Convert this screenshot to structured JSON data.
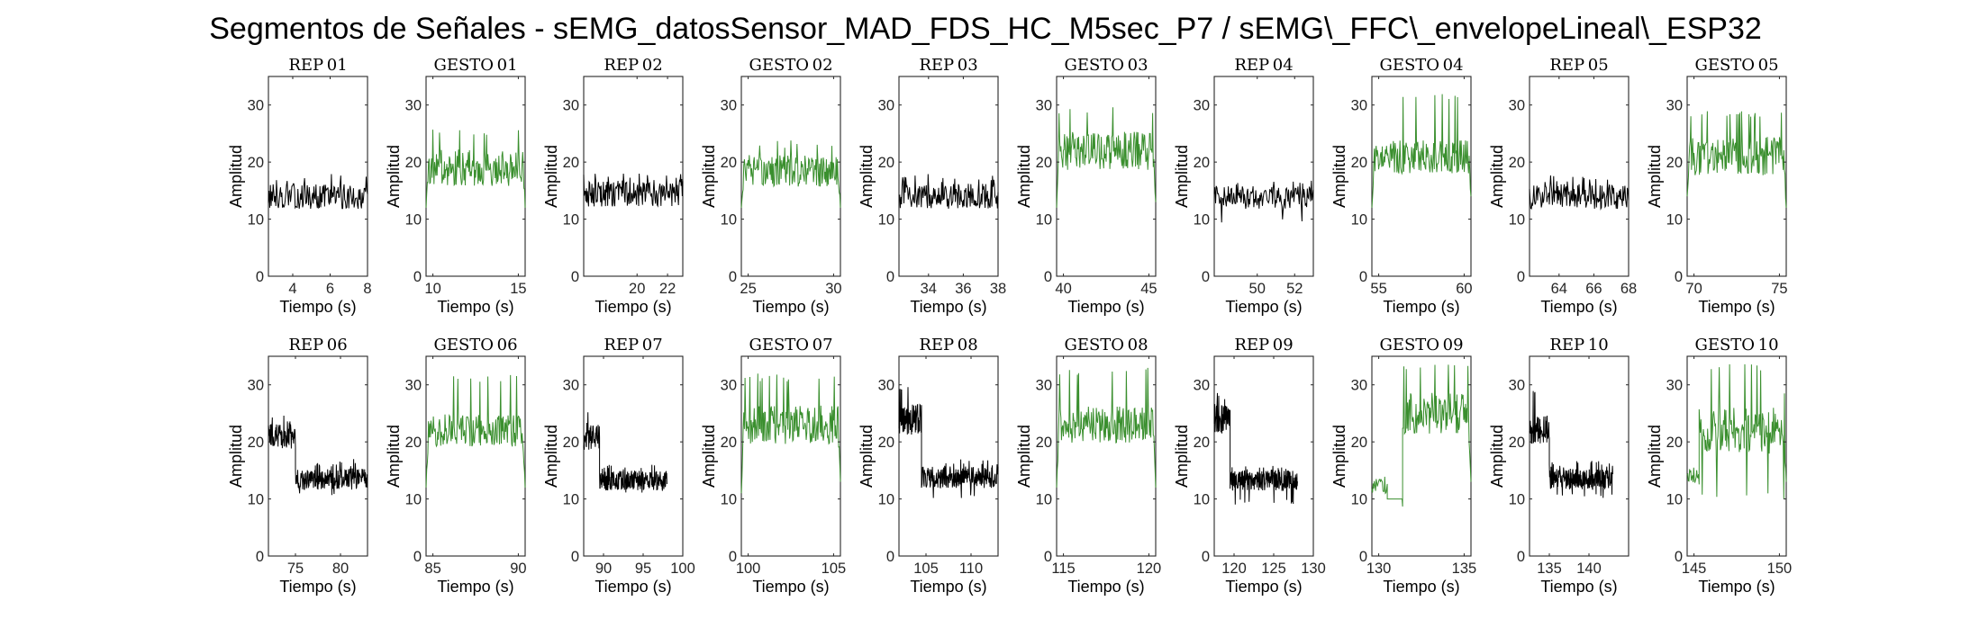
{
  "figure": {
    "title": "Segmentos de Señales - sEMG_datosSensor_MAD_FDS_HC_M5sec_P7 / sEMG\\_FFC\\_envelopeLineal\\_ESP32"
  },
  "colors": {
    "rep": "#000000",
    "gesto": "#3a8f2e",
    "axis": "#262626"
  },
  "chart_data": [
    {
      "type": "line",
      "title": "REP_01",
      "xlabel": "Tiempo (s)",
      "ylabel": "Amplitud",
      "xlim": [
        2.7,
        8.0
      ],
      "ylim": [
        0,
        35
      ],
      "xticks": [
        4,
        6,
        8
      ],
      "yticks": [
        0,
        10,
        20,
        30
      ],
      "series": [
        {
          "kind": "rep",
          "segments": [
            {
              "x0": 2.7,
              "x1": 8.0,
              "base": 14,
              "amp": 2.2,
              "spike": 18
            }
          ]
        }
      ]
    },
    {
      "type": "line",
      "title": "GESTO_01",
      "xlabel": "Tiempo (s)",
      "ylabel": "Amplitud",
      "xlim": [
        9.6,
        15.4
      ],
      "ylim": [
        0,
        35
      ],
      "xticks": [
        10,
        15
      ],
      "yticks": [
        0,
        10,
        20,
        30
      ],
      "series": [
        {
          "kind": "gesto",
          "segments": [
            {
              "x0": 9.6,
              "x1": 15.4,
              "base": 19,
              "amp": 3.2,
              "spike": 26,
              "rampIn": 12,
              "rampOut": 12
            }
          ]
        }
      ]
    },
    {
      "type": "line",
      "title": "REP_02",
      "xlabel": "Tiempo (s)",
      "ylabel": "Amplitud",
      "xlim": [
        16.5,
        23.0
      ],
      "ylim": [
        0,
        35
      ],
      "xticks": [
        20,
        22
      ],
      "yticks": [
        0,
        10,
        20,
        30
      ],
      "series": [
        {
          "kind": "rep",
          "segments": [
            {
              "x0": 16.5,
              "x1": 23.0,
              "base": 14.5,
              "amp": 2.3,
              "spike": 18
            }
          ]
        }
      ]
    },
    {
      "type": "line",
      "title": "GESTO_02",
      "xlabel": "Tiempo (s)",
      "ylabel": "Amplitud",
      "xlim": [
        24.6,
        30.4
      ],
      "ylim": [
        0,
        35
      ],
      "xticks": [
        25,
        30
      ],
      "yticks": [
        0,
        10,
        20,
        30
      ],
      "series": [
        {
          "kind": "gesto",
          "segments": [
            {
              "x0": 24.6,
              "x1": 30.4,
              "base": 18.5,
              "amp": 2.8,
              "spike": 24,
              "rampIn": 12,
              "rampOut": 12
            }
          ]
        }
      ]
    },
    {
      "type": "line",
      "title": "REP_03",
      "xlabel": "Tiempo (s)",
      "ylabel": "Amplitud",
      "xlim": [
        32.3,
        38.0
      ],
      "ylim": [
        0,
        35
      ],
      "xticks": [
        34,
        36,
        38
      ],
      "yticks": [
        0,
        10,
        20,
        30
      ],
      "series": [
        {
          "kind": "rep",
          "segments": [
            {
              "x0": 32.3,
              "x1": 38.0,
              "base": 14,
              "amp": 2.2,
              "spike": 18
            }
          ]
        }
      ]
    },
    {
      "type": "line",
      "title": "GESTO_03",
      "xlabel": "Tiempo (s)",
      "ylabel": "Amplitud",
      "xlim": [
        39.6,
        45.4
      ],
      "ylim": [
        0,
        35
      ],
      "xticks": [
        40,
        45
      ],
      "yticks": [
        0,
        10,
        20,
        30
      ],
      "series": [
        {
          "kind": "gesto",
          "segments": [
            {
              "x0": 39.6,
              "x1": 45.4,
              "base": 22,
              "amp": 3.4,
              "spike": 30,
              "rampIn": 12,
              "rampOut": 13
            }
          ]
        }
      ]
    },
    {
      "type": "line",
      "title": "REP_04",
      "xlabel": "Tiempo (s)",
      "ylabel": "Amplitud",
      "xlim": [
        47.7,
        53.0
      ],
      "ylim": [
        0,
        35
      ],
      "xticks": [
        50,
        52
      ],
      "yticks": [
        0,
        10,
        20,
        30
      ],
      "series": [
        {
          "kind": "rep",
          "segments": [
            {
              "x0": 47.7,
              "x1": 53.0,
              "base": 13.8,
              "amp": 2.0,
              "spike": 17,
              "dip": 9
            }
          ]
        }
      ]
    },
    {
      "type": "line",
      "title": "GESTO_04",
      "xlabel": "Tiempo (s)",
      "ylabel": "Amplitud",
      "xlim": [
        54.6,
        60.4
      ],
      "ylim": [
        0,
        35
      ],
      "xticks": [
        55,
        60
      ],
      "yticks": [
        0,
        10,
        20,
        30
      ],
      "series": [
        {
          "kind": "gesto",
          "segments": [
            {
              "x0": 54.6,
              "x1": 60.4,
              "base": 21,
              "amp": 3.0,
              "spike": 32,
              "rampIn": 12,
              "rampOut": 14
            }
          ]
        }
      ]
    },
    {
      "type": "line",
      "title": "REP_05",
      "xlabel": "Tiempo (s)",
      "ylabel": "Amplitud",
      "xlim": [
        62.3,
        68.0
      ],
      "ylim": [
        0,
        35
      ],
      "xticks": [
        64,
        66,
        68
      ],
      "yticks": [
        0,
        10,
        20,
        30
      ],
      "series": [
        {
          "kind": "rep",
          "segments": [
            {
              "x0": 62.3,
              "x1": 68.0,
              "base": 14,
              "amp": 2.2,
              "spike": 18
            }
          ]
        }
      ]
    },
    {
      "type": "line",
      "title": "GESTO_05",
      "xlabel": "Tiempo (s)",
      "ylabel": "Amplitud",
      "xlim": [
        69.6,
        75.4
      ],
      "ylim": [
        0,
        35
      ],
      "xticks": [
        70,
        75
      ],
      "yticks": [
        0,
        10,
        20,
        30
      ],
      "series": [
        {
          "kind": "gesto",
          "segments": [
            {
              "x0": 69.6,
              "x1": 75.4,
              "base": 21,
              "amp": 3.4,
              "spike": 29,
              "rampIn": 14,
              "rampOut": 12
            }
          ]
        }
      ]
    },
    {
      "type": "line",
      "title": "REP_06",
      "xlabel": "Tiempo (s)",
      "ylabel": "Amplitud",
      "xlim": [
        72.0,
        83.0
      ],
      "ylim": [
        0,
        35
      ],
      "xticks": [
        75,
        80
      ],
      "yticks": [
        0,
        10,
        20,
        30
      ],
      "series": [
        {
          "kind": "rep",
          "segments": [
            {
              "x0": 72.0,
              "x1": 75.0,
              "base": 21,
              "amp": 2.2,
              "spike": 25
            },
            {
              "x0": 75.0,
              "x1": 83.0,
              "base": 13.5,
              "amp": 1.9,
              "spike": 17,
              "dip": 10
            }
          ]
        }
      ]
    },
    {
      "type": "line",
      "title": "GESTO_06",
      "xlabel": "Tiempo (s)",
      "ylabel": "Amplitud",
      "xlim": [
        84.6,
        90.4
      ],
      "ylim": [
        0,
        35
      ],
      "xticks": [
        85,
        90
      ],
      "yticks": [
        0,
        10,
        20,
        30
      ],
      "series": [
        {
          "kind": "gesto",
          "segments": [
            {
              "x0": 84.6,
              "x1": 90.4,
              "base": 22,
              "amp": 2.8,
              "spike": 32,
              "rampIn": 12,
              "rampOut": 12
            }
          ]
        }
      ]
    },
    {
      "type": "line",
      "title": "REP_07",
      "xlabel": "Tiempo (s)",
      "ylabel": "Amplitud",
      "xlim": [
        87.5,
        100.0
      ],
      "ylim": [
        0,
        35
      ],
      "xticks": [
        90,
        95,
        100
      ],
      "yticks": [
        0,
        10,
        20,
        30
      ],
      "series": [
        {
          "kind": "rep",
          "segments": [
            {
              "x0": 87.5,
              "x1": 89.5,
              "base": 21,
              "amp": 2.4,
              "spike": 26
            },
            {
              "x0": 89.5,
              "x1": 98.0,
              "base": 13.2,
              "amp": 1.7,
              "spike": 16,
              "dip": 11
            }
          ]
        }
      ]
    },
    {
      "type": "line",
      "title": "GESTO_07",
      "xlabel": "Tiempo (s)",
      "ylabel": "Amplitud",
      "xlim": [
        99.6,
        105.4
      ],
      "ylim": [
        0,
        35
      ],
      "xticks": [
        100,
        105
      ],
      "yticks": [
        0,
        10,
        20,
        30
      ],
      "series": [
        {
          "kind": "gesto",
          "segments": [
            {
              "x0": 99.6,
              "x1": 105.4,
              "base": 23,
              "amp": 3.4,
              "spike": 32,
              "rampIn": 11,
              "rampOut": 13
            }
          ]
        }
      ]
    },
    {
      "type": "line",
      "title": "REP_08",
      "xlabel": "Tiempo (s)",
      "ylabel": "Amplitud",
      "xlim": [
        102.0,
        113.0
      ],
      "ylim": [
        0,
        35
      ],
      "xticks": [
        105,
        110
      ],
      "yticks": [
        0,
        10,
        20,
        30
      ],
      "series": [
        {
          "kind": "rep",
          "segments": [
            {
              "x0": 102.0,
              "x1": 104.5,
              "base": 24,
              "amp": 2.8,
              "spike": 30
            },
            {
              "x0": 104.5,
              "x1": 113.0,
              "base": 13.8,
              "amp": 1.9,
              "spike": 17,
              "dip": 10
            }
          ]
        }
      ]
    },
    {
      "type": "line",
      "title": "GESTO_08",
      "xlabel": "Tiempo (s)",
      "ylabel": "Amplitud",
      "xlim": [
        114.6,
        120.4
      ],
      "ylim": [
        0,
        35
      ],
      "xticks": [
        115,
        120
      ],
      "yticks": [
        0,
        10,
        20,
        30
      ],
      "series": [
        {
          "kind": "gesto",
          "segments": [
            {
              "x0": 114.6,
              "x1": 120.4,
              "base": 23,
              "amp": 3.2,
              "spike": 33,
              "rampIn": 12,
              "rampOut": 12
            }
          ]
        }
      ]
    },
    {
      "type": "line",
      "title": "REP_09",
      "xlabel": "Tiempo (s)",
      "ylabel": "Amplitud",
      "xlim": [
        117.5,
        130.0
      ],
      "ylim": [
        0,
        35
      ],
      "xticks": [
        120,
        125,
        130
      ],
      "yticks": [
        0,
        10,
        20,
        30
      ],
      "series": [
        {
          "kind": "rep",
          "segments": [
            {
              "x0": 117.5,
              "x1": 119.5,
              "base": 24,
              "amp": 2.6,
              "spike": 29
            },
            {
              "x0": 119.5,
              "x1": 128.0,
              "base": 13.2,
              "amp": 1.8,
              "spike": 16,
              "dip": 9
            }
          ]
        }
      ]
    },
    {
      "type": "line",
      "title": "GESTO_09",
      "xlabel": "Tiempo (s)",
      "ylabel": "Amplitud",
      "xlim": [
        129.6,
        135.4
      ],
      "ylim": [
        0,
        35
      ],
      "xticks": [
        130,
        135
      ],
      "yticks": [
        0,
        10,
        20,
        30
      ],
      "series": [
        {
          "kind": "gesto",
          "segments": [
            {
              "x0": 129.6,
              "x1": 130.5,
              "base": 12,
              "amp": 1.5,
              "spike": 14
            },
            {
              "x0": 130.5,
              "x1": 131.4,
              "base": 10,
              "amp": 0,
              "spike": 10
            },
            {
              "x0": 131.4,
              "x1": 135.4,
              "base": 25,
              "amp": 3.6,
              "spike": 34,
              "rampOut": 13
            }
          ]
        }
      ]
    },
    {
      "type": "line",
      "title": "REP_10",
      "xlabel": "Tiempo (s)",
      "ylabel": "Amplitud",
      "xlim": [
        132.5,
        145.0
      ],
      "ylim": [
        0,
        35
      ],
      "xticks": [
        135,
        140
      ],
      "yticks": [
        0,
        10,
        20,
        30
      ],
      "series": [
        {
          "kind": "rep",
          "segments": [
            {
              "x0": 132.5,
              "x1": 135.0,
              "base": 22,
              "amp": 2.6,
              "spike": 29
            },
            {
              "x0": 135.0,
              "x1": 143.0,
              "base": 13.5,
              "amp": 1.8,
              "spike": 17,
              "dip": 10
            }
          ]
        }
      ]
    },
    {
      "type": "line",
      "title": "GESTO_10",
      "xlabel": "Tiempo (s)",
      "ylabel": "Amplitud",
      "xlim": [
        144.6,
        150.4
      ],
      "ylim": [
        0,
        35
      ],
      "xticks": [
        145,
        150
      ],
      "yticks": [
        0,
        10,
        20,
        30
      ],
      "series": [
        {
          "kind": "gesto",
          "segments": [
            {
              "x0": 144.6,
              "x1": 145.3,
              "base": 14,
              "amp": 1.5,
              "spike": 15
            },
            {
              "x0": 145.3,
              "x1": 150.4,
              "base": 22,
              "amp": 4.2,
              "spike": 34,
              "dip": 10,
              "rampOut": 13
            }
          ]
        }
      ]
    }
  ]
}
